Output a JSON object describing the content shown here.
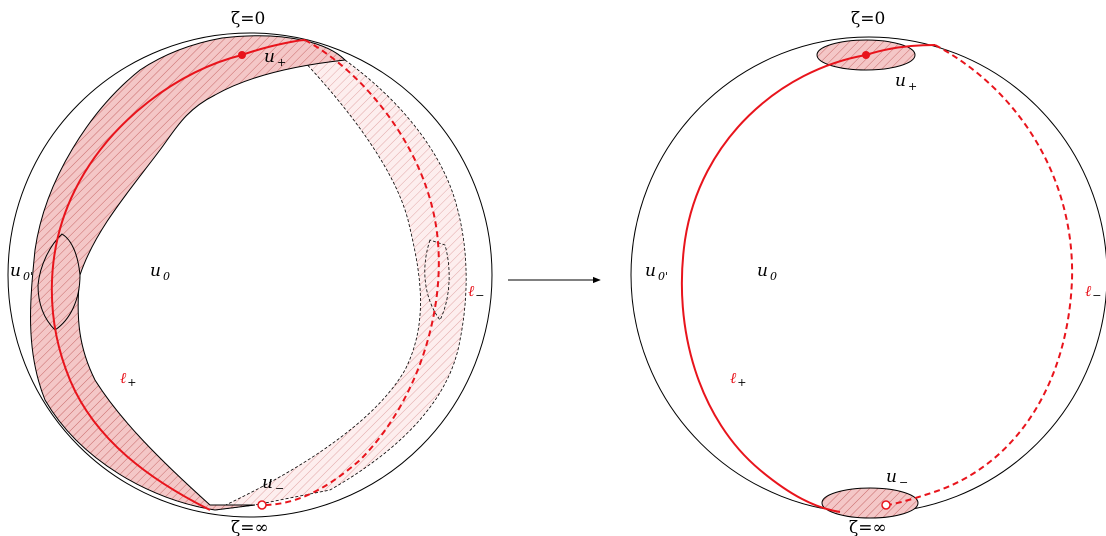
{
  "colors": {
    "curve_red": "#e8141c",
    "band_fill": "#f4c7c7",
    "band_light": "#fbe3e3",
    "hatch": "#d98a8a",
    "outline": "#000000"
  },
  "left_sphere": {
    "top_label": "ζ=0",
    "bottom_label": "ζ=∞",
    "region_u_plus": {
      "base": "u",
      "sub": "+"
    },
    "region_u_minus": {
      "base": "u",
      "sub": "−"
    },
    "region_u0": {
      "base": "u",
      "sub": "0"
    },
    "region_u0_prime": {
      "base": "u",
      "sub": "0'"
    },
    "curve_l_plus": {
      "base": "ℓ",
      "sub": "+"
    },
    "curve_l_minus": {
      "base": "ℓ",
      "sub": "−"
    }
  },
  "right_sphere": {
    "top_label": "ζ=0",
    "bottom_label": "ζ=∞",
    "region_u_plus": {
      "base": "u",
      "sub": "+"
    },
    "region_u_minus": {
      "base": "u",
      "sub": "−"
    },
    "region_u0": {
      "base": "u",
      "sub": "0"
    },
    "region_u0_prime": {
      "base": "u",
      "sub": "0'"
    },
    "curve_l_plus": {
      "base": "ℓ",
      "sub": "+"
    },
    "curve_l_minus": {
      "base": "ℓ",
      "sub": "−"
    }
  },
  "arrow": {
    "icon": "right-arrow-icon"
  }
}
